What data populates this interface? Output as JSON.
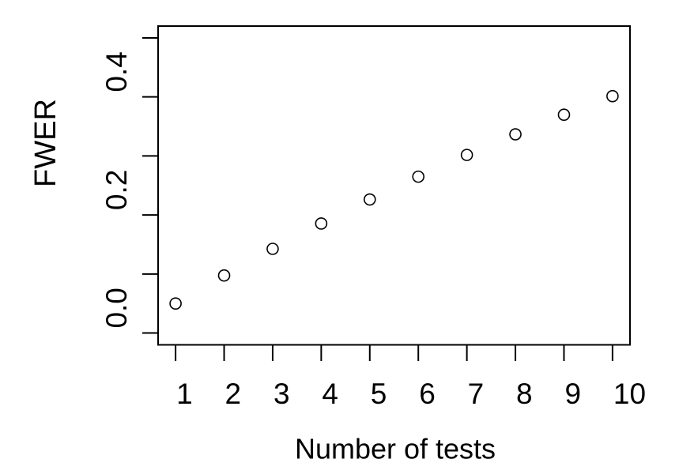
{
  "chart_data": {
    "type": "scatter",
    "title": "",
    "xlabel": "Number of tests",
    "ylabel": "FWER",
    "x": [
      1,
      2,
      3,
      4,
      5,
      6,
      7,
      8,
      9,
      10
    ],
    "y": [
      0.05,
      0.0975,
      0.1426,
      0.1855,
      0.2262,
      0.2649,
      0.3017,
      0.3366,
      0.3698,
      0.4013
    ],
    "x_ticks": [
      {
        "value": 1,
        "label": "1"
      },
      {
        "value": 2,
        "label": "2"
      },
      {
        "value": 3,
        "label": "3"
      },
      {
        "value": 4,
        "label": "4"
      },
      {
        "value": 5,
        "label": "5"
      },
      {
        "value": 6,
        "label": "6"
      },
      {
        "value": 7,
        "label": "7"
      },
      {
        "value": 8,
        "label": "8"
      },
      {
        "value": 9,
        "label": "9"
      },
      {
        "value": 10,
        "label": "10"
      }
    ],
    "y_ticks": [
      {
        "value": 0.0,
        "label": "0.0"
      },
      {
        "value": 0.1,
        "label": ""
      },
      {
        "value": 0.2,
        "label": "0.2"
      },
      {
        "value": 0.3,
        "label": ""
      },
      {
        "value": 0.4,
        "label": "0.4"
      },
      {
        "value": 0.5,
        "label": ""
      }
    ],
    "xlim": [
      0.64,
      10.36
    ],
    "ylim": [
      -0.02,
      0.52
    ],
    "grid": false,
    "legend": "none",
    "marker": "open-circle",
    "colors": {
      "axis": "#000000",
      "marker": "#000000",
      "background": "#ffffff"
    }
  }
}
